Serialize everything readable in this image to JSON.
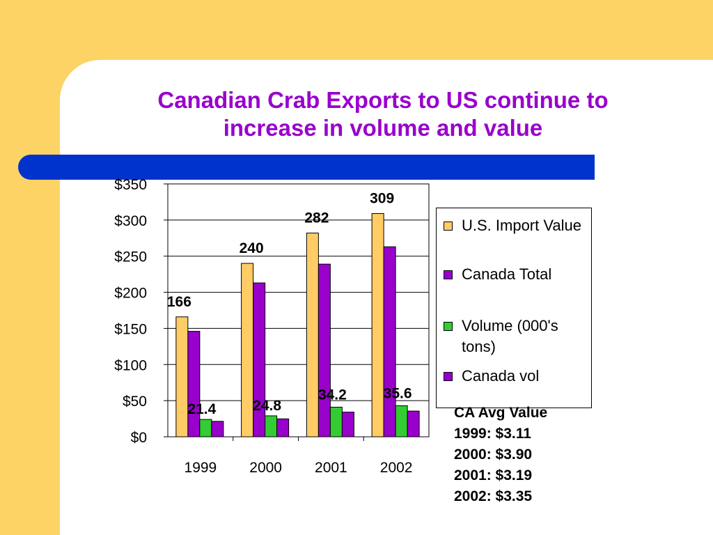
{
  "slide": {
    "title_line1": "Canadian Crab Exports to US continue to",
    "title_line2": "increase in volume and value",
    "colors": {
      "background": "#fdd365",
      "band": "#0033cc",
      "title": "#9900cc"
    }
  },
  "chart_data": {
    "type": "bar",
    "categories": [
      "1999",
      "2000",
      "2001",
      "2002"
    ],
    "y_ticks": [
      "$0",
      "$50",
      "$100",
      "$150",
      "$200",
      "$250",
      "$300",
      "$350"
    ],
    "ylim": [
      0,
      350
    ],
    "grid": true,
    "legend_position": "right",
    "series": [
      {
        "name": "U.S. Import Value",
        "color": "#ffcc66",
        "values": [
          166,
          240,
          282,
          309
        ],
        "labels": [
          "166",
          "240",
          "282",
          "309"
        ]
      },
      {
        "name": "Canada Total",
        "color": "#9900cc",
        "values": [
          146,
          213,
          239,
          263
        ]
      },
      {
        "name": "Volume (000's tons)",
        "color": "#33cc33",
        "values": [
          24,
          29,
          41,
          43
        ]
      },
      {
        "name": "Canada vol",
        "color": "#9900cc",
        "values": [
          21.4,
          24.8,
          34.2,
          35.6
        ],
        "labels": [
          "21.4",
          "24.8",
          "34.2",
          "35.6"
        ]
      }
    ]
  },
  "note": {
    "heading": "CA Avg Value",
    "lines": [
      "1999: $3.11",
      "2000: $3.90",
      "2001: $3.19",
      "2002: $3.35"
    ]
  }
}
